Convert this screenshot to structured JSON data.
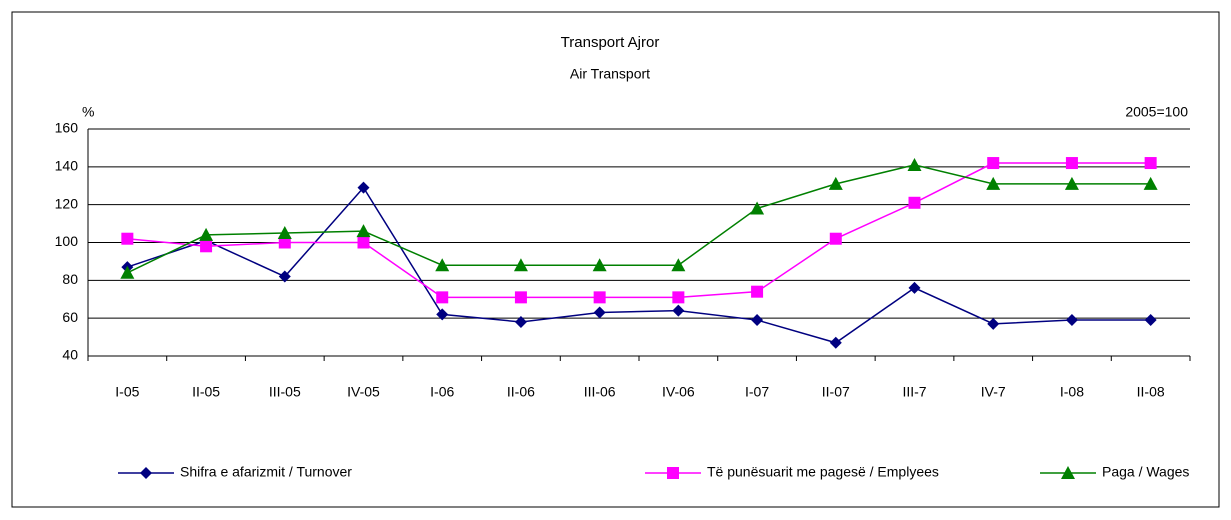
{
  "chart_data": {
    "type": "line",
    "title": "Transport Ajror",
    "subtitle": "Air Transport",
    "y_unit": "%",
    "annotation": "2005=100",
    "categories": [
      "I-05",
      "II-05",
      "III-05",
      "IV-05",
      "I-06",
      "II-06",
      "III-06",
      "IV-06",
      "I-07",
      "II-07",
      "III-7",
      "IV-7",
      "I-08",
      "II-08"
    ],
    "series": [
      {
        "name": "Shifra e afarizmit / Turnover",
        "color": "#000080",
        "marker": "diamond",
        "values": [
          87,
          101,
          82,
          129,
          62,
          58,
          63,
          64,
          59,
          47,
          76,
          57,
          59,
          59
        ]
      },
      {
        "name": "Të punësuarit me pagesë / Emplyees",
        "color": "#ff00ff",
        "marker": "square",
        "values": [
          102,
          98,
          100,
          100,
          71,
          71,
          71,
          71,
          74,
          102,
          121,
          142,
          142,
          142
        ]
      },
      {
        "name": "Paga / Wages",
        "color": "#008000",
        "marker": "triangle",
        "values": [
          84,
          104,
          105,
          106,
          88,
          88,
          88,
          88,
          118,
          131,
          141,
          131,
          131,
          131
        ]
      }
    ],
    "ylim": [
      40,
      160
    ],
    "yticks": [
      40,
      60,
      80,
      100,
      120,
      140,
      160
    ],
    "grid": true,
    "legend": "bottom"
  }
}
